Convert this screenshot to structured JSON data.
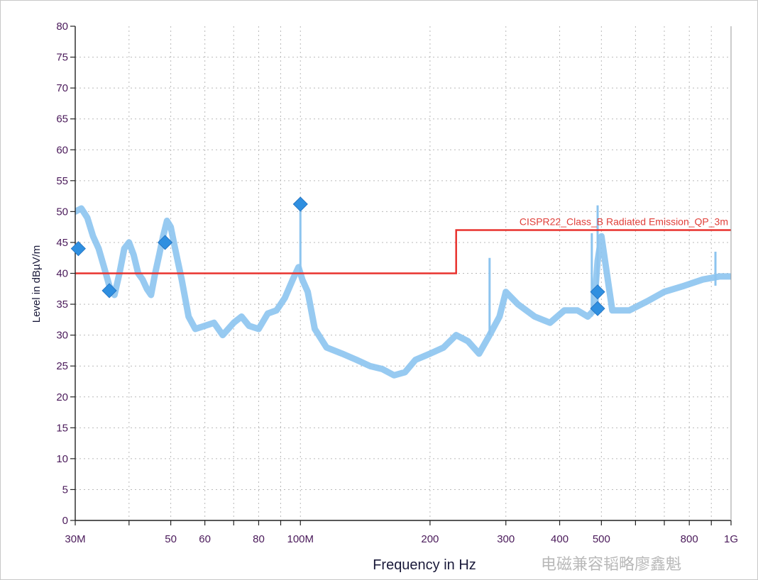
{
  "chart_data": {
    "type": "line",
    "title": "",
    "xlabel": "Frequency in Hz",
    "ylabel": "Level in dBµV/m",
    "xscale": "log",
    "xlim": [
      30000000,
      1000000000
    ],
    "ylim": [
      0,
      80
    ],
    "grid": true,
    "x_ticks": [
      {
        "value": 30000000,
        "label": "30M"
      },
      {
        "value": 50000000,
        "label": "50"
      },
      {
        "value": 60000000,
        "label": "60"
      },
      {
        "value": 80000000,
        "label": "80"
      },
      {
        "value": 100000000,
        "label": "100M"
      },
      {
        "value": 200000000,
        "label": "200"
      },
      {
        "value": 300000000,
        "label": "300"
      },
      {
        "value": 400000000,
        "label": "400"
      },
      {
        "value": 500000000,
        "label": "500"
      },
      {
        "value": 800000000,
        "label": "800"
      },
      {
        "value": 1000000000,
        "label": "1G"
      }
    ],
    "y_ticks": [
      0,
      5,
      10,
      15,
      20,
      25,
      30,
      35,
      40,
      45,
      50,
      55,
      60,
      65,
      70,
      75,
      80
    ],
    "series": [
      {
        "kind": "limit",
        "name": "CISPR22_Class_B Radiated Emission_QP_3m",
        "color": "#e8322e",
        "x": [
          30000000,
          230000000,
          230000000,
          1000000000
        ],
        "y": [
          40,
          40,
          47,
          47
        ]
      },
      {
        "kind": "trace",
        "color": "#8cc4ef",
        "x": [
          30000000,
          31000000,
          32000000,
          33000000,
          34000000,
          35000000,
          36000000,
          37000000,
          38000000,
          39000000,
          40000000,
          41000000,
          42000000,
          43000000,
          44000000,
          45000000,
          46000000,
          47000000,
          48000000,
          49000000,
          50000000,
          51000000,
          53000000,
          55000000,
          57000000,
          60000000,
          63000000,
          66000000,
          70000000,
          73000000,
          76000000,
          80000000,
          84000000,
          88000000,
          92000000,
          96000000,
          99000000,
          100000000,
          101000000,
          104000000,
          108000000,
          115000000,
          125000000,
          135000000,
          145000000,
          155000000,
          165000000,
          175000000,
          185000000,
          200000000,
          215000000,
          230000000,
          245000000,
          260000000,
          275000000,
          290000000,
          300000000,
          320000000,
          350000000,
          380000000,
          410000000,
          440000000,
          465000000,
          480000000,
          490000000,
          500000000,
          530000000,
          580000000,
          640000000,
          700000000,
          780000000,
          860000000,
          940000000,
          1000000000
        ],
        "y": [
          50,
          50.5,
          49,
          46,
          44,
          41,
          38,
          36.5,
          40,
          44,
          45,
          43,
          40,
          39,
          37.5,
          36.5,
          40,
          43,
          46,
          48.5,
          47.5,
          44.5,
          39,
          33,
          31,
          31.5,
          32,
          30,
          32,
          33,
          31.5,
          31,
          33.5,
          34,
          36,
          39,
          41,
          40,
          39,
          37,
          31,
          28,
          27,
          26,
          25,
          24.5,
          23.5,
          24,
          26,
          27,
          28,
          30,
          29,
          27,
          30,
          33,
          37,
          35,
          33,
          32,
          34,
          34,
          33,
          34,
          42,
          46,
          34,
          34,
          35.5,
          37,
          38,
          39,
          39.5,
          39.5
        ]
      },
      {
        "kind": "markers",
        "color": "#2f8fe0",
        "x": [
          30500000,
          36000000,
          48500000,
          100000000,
          490000000,
          490000000
        ],
        "y": [
          44,
          37.2,
          45,
          51.2,
          37,
          34.3
        ]
      }
    ]
  },
  "watermark": "电磁兼容韬略廖鑫魁"
}
